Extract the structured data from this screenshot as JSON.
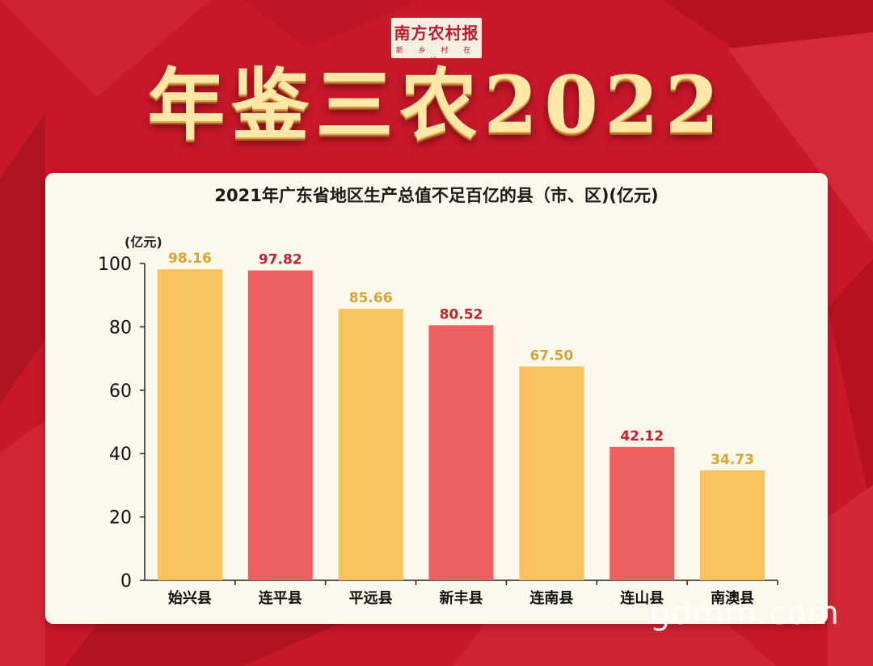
{
  "header": {
    "logo_text": "南方农村报",
    "logo_sub": "新 乡 村 在 线",
    "banner_title": "年鉴三农2022"
  },
  "colors": {
    "background": "#c8182a",
    "card": "#fdf8ec",
    "bar_yellow": "#f8c25c",
    "bar_red": "#ee5f60",
    "label_yellow": "#d9a52d",
    "label_red": "#c8202e"
  },
  "chart_data": {
    "type": "bar",
    "title": "2021年广东省地区生产总值不足百亿的县（市、区)(亿元)",
    "ylabel": "(亿元)",
    "xlabel": "",
    "categories": [
      "始兴县",
      "连平县",
      "平远县",
      "新丰县",
      "连南县",
      "连山县",
      "南澳县"
    ],
    "values": [
      98.16,
      97.82,
      85.66,
      80.52,
      67.5,
      42.12,
      34.73
    ],
    "value_labels": [
      "98.16",
      "97.82",
      "85.66",
      "80.52",
      "67.50",
      "42.12",
      "34.73"
    ],
    "bar_colors": [
      "yellow",
      "red",
      "yellow",
      "red",
      "yellow",
      "red",
      "yellow"
    ],
    "ylim": [
      0,
      100
    ],
    "yticks": [
      0,
      20,
      40,
      60,
      80,
      100
    ],
    "grid": false,
    "legend": "none"
  },
  "watermark": "gdmm.com"
}
